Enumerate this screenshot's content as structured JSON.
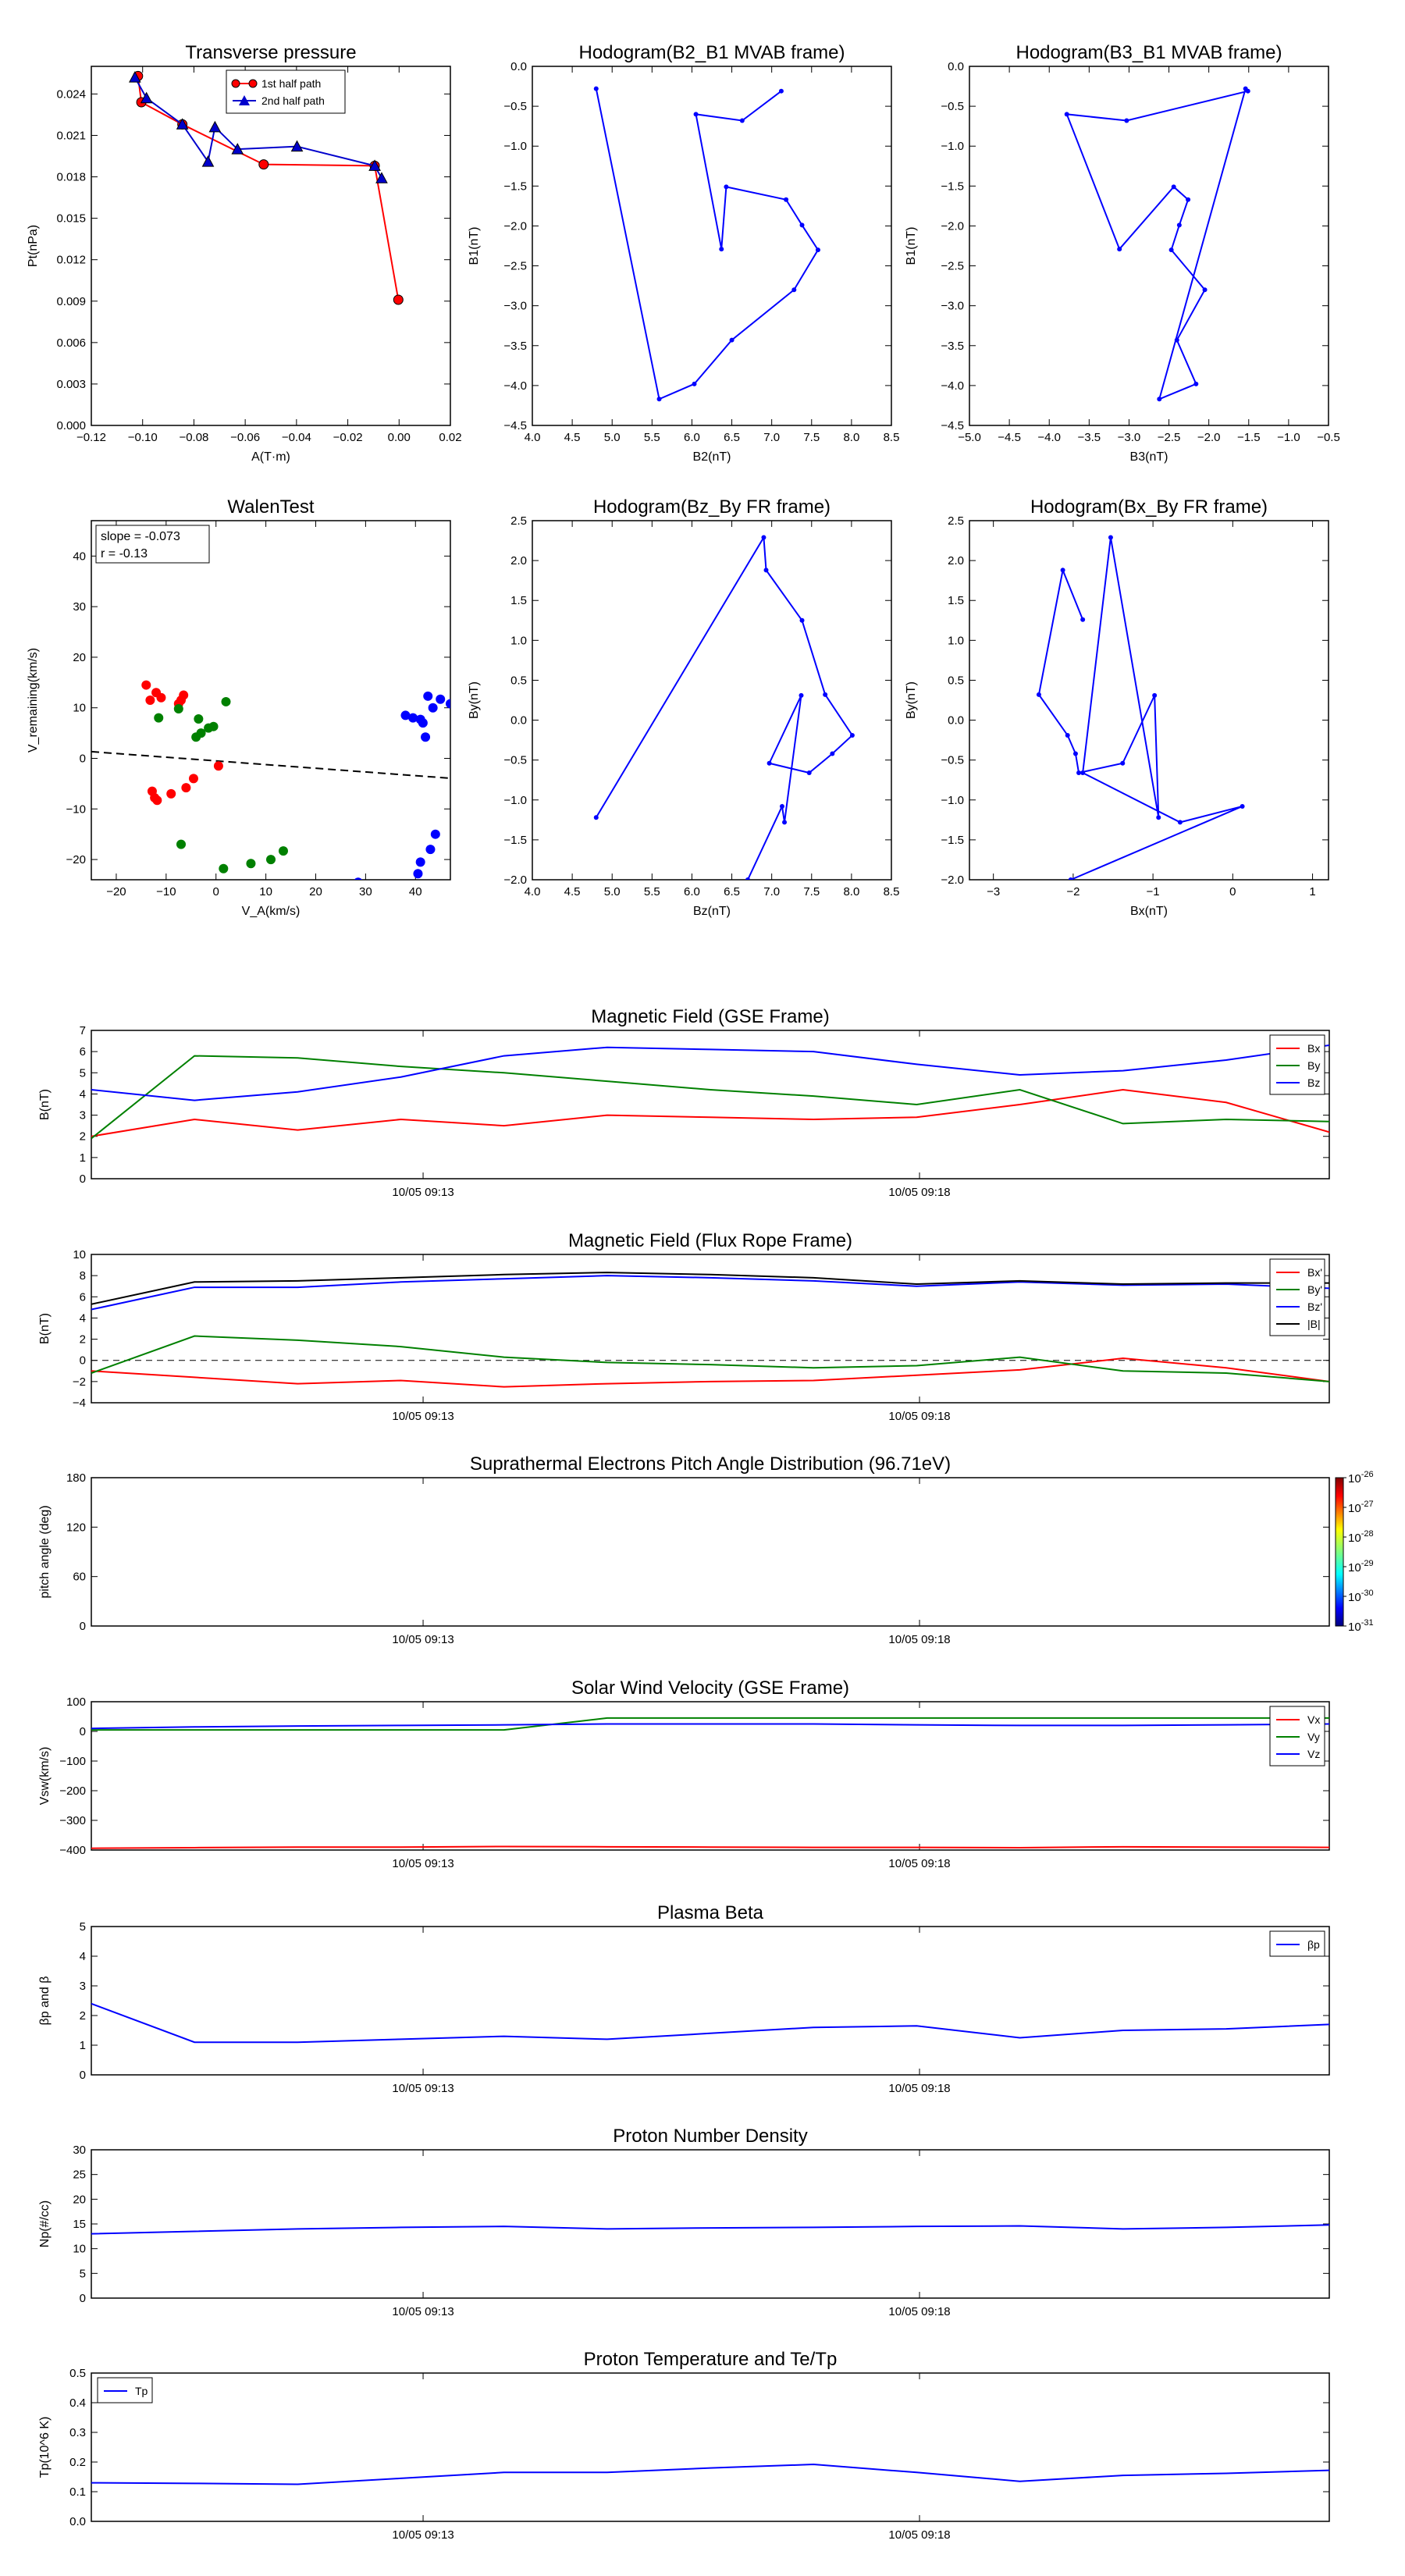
{
  "figure": {
    "time_ticks": [
      "10/05 09:13",
      "10/05 09:18"
    ]
  },
  "chart_data": [
    {
      "id": "tp",
      "type": "line",
      "title": "Transverse pressure",
      "xlabel": "A(T·m)",
      "ylabel": "Pt(nPa)",
      "xlim": [
        -0.12,
        0.02
      ],
      "ylim": [
        0,
        0.026
      ],
      "xticks": [
        -0.12,
        -0.1,
        -0.08,
        -0.06,
        -0.04,
        -0.02,
        0.0,
        0.02
      ],
      "xtick_labels": [
        "−0.12",
        "−0.10",
        "−0.08",
        "−0.06",
        "−0.04",
        "−0.02",
        "0.00",
        "0.02"
      ],
      "yticks": [
        0,
        0.003,
        0.006,
        0.009,
        0.012,
        0.015,
        0.018,
        0.021,
        0.024
      ],
      "ytick_labels": [
        "0.000",
        "0.003",
        "0.006",
        "0.009",
        "0.012",
        "0.015",
        "0.018",
        "0.021",
        "0.024"
      ],
      "legend": "top-center",
      "series": [
        {
          "name": "1st half path",
          "color": "#ff0000",
          "marker": "circle",
          "x": [
            -0.0003,
            -0.0095,
            -0.0528,
            -0.0845,
            -0.1005,
            -0.1018
          ],
          "y": [
            0.0091,
            0.0188,
            0.0189,
            0.0218,
            0.0234,
            0.0253
          ]
        },
        {
          "name": "2nd half path",
          "color": "#0000cc",
          "marker": "triangle",
          "x": [
            -0.103,
            -0.0985,
            -0.0845,
            -0.0745,
            -0.0718,
            -0.063,
            -0.0398,
            -0.0095,
            -0.0068
          ],
          "y": [
            0.0252,
            0.0237,
            0.0218,
            0.0191,
            0.0216,
            0.02,
            0.0202,
            0.0188,
            0.0179
          ]
        }
      ]
    },
    {
      "id": "h1",
      "type": "line",
      "title": "Hodogram(B2_B1 MVAB frame)",
      "xlabel": "B2(nT)",
      "ylabel": "B1(nT)",
      "xlim": [
        4.0,
        8.5
      ],
      "ylim": [
        -4.5,
        0.0
      ],
      "xticks": [
        4.0,
        4.5,
        5.0,
        5.5,
        6.0,
        6.5,
        7.0,
        7.5,
        8.0,
        8.5
      ],
      "xtick_labels": [
        "4.0",
        "4.5",
        "5.0",
        "5.5",
        "6.0",
        "6.5",
        "7.0",
        "7.5",
        "8.0",
        "8.5"
      ],
      "yticks": [
        -4.5,
        -4.0,
        -3.5,
        -3.0,
        -2.5,
        -2.0,
        -1.5,
        -1.0,
        -0.5,
        0.0
      ],
      "ytick_labels": [
        "−4.5",
        "−4.0",
        "−3.5",
        "−3.0",
        "−2.5",
        "−2.0",
        "−1.5",
        "−1.0",
        "−0.5",
        "0.0"
      ],
      "series": [
        {
          "color": "#0000ff",
          "x": [
            7.12,
            6.63,
            6.05,
            6.37,
            6.43,
            7.18,
            7.38,
            7.58,
            7.28,
            6.5,
            6.03,
            5.59,
            4.8
          ],
          "y": [
            -0.31,
            -0.68,
            -0.6,
            -2.29,
            -1.51,
            -1.67,
            -1.99,
            -2.3,
            -2.8,
            -3.43,
            -3.98,
            -4.17,
            -0.28
          ]
        }
      ]
    },
    {
      "id": "h2",
      "type": "line",
      "title": "Hodogram(B3_B1 MVAB frame)",
      "xlabel": "B3(nT)",
      "ylabel": "B1(nT)",
      "xlim": [
        -5.0,
        -0.5
      ],
      "ylim": [
        -4.5,
        0.0
      ],
      "xticks": [
        -5.0,
        -4.5,
        -4.0,
        -3.5,
        -3.0,
        -2.5,
        -2.0,
        -1.5,
        -1.0,
        -0.5
      ],
      "xtick_labels": [
        "−5.0",
        "−4.5",
        "−4.0",
        "−3.5",
        "−3.0",
        "−2.5",
        "−2.0",
        "−1.5",
        "−1.0",
        "−0.5"
      ],
      "yticks": [
        -4.5,
        -4.0,
        -3.5,
        -3.0,
        -2.5,
        -2.0,
        -1.5,
        -1.0,
        -0.5,
        0.0
      ],
      "ytick_labels": [
        "−4.5",
        "−4.0",
        "−3.5",
        "−3.0",
        "−2.5",
        "−2.0",
        "−1.5",
        "−1.0",
        "−0.5",
        "0.0"
      ],
      "series": [
        {
          "color": "#0000ff",
          "x": [
            -1.51,
            -3.03,
            -3.78,
            -3.12,
            -2.44,
            -2.26,
            -2.37,
            -2.47,
            -2.05,
            -2.4,
            -2.16,
            -2.62,
            -1.54
          ],
          "y": [
            -0.31,
            -0.68,
            -0.6,
            -2.29,
            -1.51,
            -1.67,
            -1.99,
            -2.3,
            -2.8,
            -3.43,
            -3.98,
            -4.17,
            -0.28
          ]
        }
      ]
    },
    {
      "id": "walen",
      "type": "scatter",
      "title": "WalenTest",
      "xlabel": "V_A(km/s)",
      "ylabel": "V_remaining(km/s)",
      "xlim": [
        -25,
        47
      ],
      "ylim": [
        -24,
        47
      ],
      "xticks": [
        -20,
        -10,
        0,
        10,
        20,
        30,
        40
      ],
      "xtick_labels": [
        "−20",
        "−10",
        "0",
        "10",
        "20",
        "30",
        "40"
      ],
      "yticks": [
        -20,
        -10,
        0,
        10,
        20,
        30,
        40
      ],
      "ytick_labels": [
        "−20",
        "−10",
        "0",
        "10",
        "20",
        "30",
        "40"
      ],
      "annotation": [
        "slope = -0.073",
        "r = -0.13"
      ],
      "fit": {
        "slope": -0.073,
        "intercept": -0.5,
        "style": "dashed"
      },
      "series": [
        {
          "color": "#ff0000",
          "x": [
            -14.0,
            -13.2,
            -12.0,
            -11.0,
            -7.5,
            -7.0,
            -6.5,
            -12.8,
            -12.3,
            -11.8,
            -9.0,
            -6.0,
            -4.5,
            0.5
          ],
          "y": [
            14.5,
            11.5,
            13.0,
            12.0,
            10.8,
            11.5,
            12.5,
            -6.5,
            -7.8,
            -8.3,
            -7.0,
            -5.8,
            -4.0,
            -1.5
          ]
        },
        {
          "color": "#008000",
          "x": [
            -11.5,
            -7.5,
            -3.5,
            -3.0,
            -1.5,
            -0.5,
            2.0,
            -4.0,
            -7.0,
            1.5,
            7.0,
            11.0,
            13.5
          ],
          "y": [
            8.0,
            9.8,
            7.8,
            5.0,
            6.0,
            6.3,
            11.2,
            4.2,
            -17.0,
            -21.8,
            -20.8,
            -20.0,
            -18.3
          ]
        },
        {
          "color": "#0000ff",
          "x": [
            38.0,
            39.5,
            41.0,
            41.5,
            42.0,
            42.5,
            43.5,
            45.0,
            47.0,
            41.0,
            40.5,
            43.0,
            44.0,
            28.5
          ],
          "y": [
            8.5,
            8.0,
            7.7,
            7.0,
            4.2,
            12.3,
            10.0,
            11.7,
            10.8,
            -20.5,
            -22.8,
            -18.0,
            -15.0,
            -24.5
          ]
        }
      ]
    },
    {
      "id": "h3",
      "type": "line",
      "title": "Hodogram(Bz_By FR frame)",
      "xlabel": "Bz(nT)",
      "ylabel": "By(nT)",
      "xlim": [
        4.0,
        8.5
      ],
      "ylim": [
        -2.0,
        2.5
      ],
      "xticks": [
        4.0,
        4.5,
        5.0,
        5.5,
        6.0,
        6.5,
        7.0,
        7.5,
        8.0,
        8.5
      ],
      "xtick_labels": [
        "4.0",
        "4.5",
        "5.0",
        "5.5",
        "6.0",
        "6.5",
        "7.0",
        "7.5",
        "8.0",
        "8.5"
      ],
      "yticks": [
        -2.0,
        -1.5,
        -1.0,
        -0.5,
        0.0,
        0.5,
        1.0,
        1.5,
        2.0,
        2.5
      ],
      "ytick_labels": [
        "−2.0",
        "−1.5",
        "−1.0",
        "−0.5",
        "0.0",
        "0.5",
        "1.0",
        "1.5",
        "2.0",
        "2.5"
      ],
      "series": [
        {
          "color": "#0000ff",
          "x": [
            4.8,
            6.9,
            6.93,
            7.38,
            7.67,
            8.01,
            7.76,
            7.47,
            6.97,
            7.37,
            7.16,
            7.13,
            6.7
          ],
          "y": [
            -1.22,
            2.29,
            1.88,
            1.25,
            0.32,
            -0.19,
            -0.42,
            -0.66,
            -0.54,
            0.31,
            -1.28,
            -1.08,
            -2.0
          ]
        }
      ]
    },
    {
      "id": "h4",
      "type": "line",
      "title": "Hodogram(Bx_By FR frame)",
      "xlabel": "Bx(nT)",
      "ylabel": "By(nT)",
      "xlim": [
        -3.3,
        1.2
      ],
      "ylim": [
        -2.0,
        2.5
      ],
      "xticks": [
        -3,
        -2,
        -1,
        0,
        1
      ],
      "xtick_labels": [
        "−3",
        "−2",
        "−1",
        "0",
        "1"
      ],
      "yticks": [
        -2.0,
        -1.5,
        -1.0,
        -0.5,
        0.0,
        0.5,
        1.0,
        1.5,
        2.0,
        2.5
      ],
      "ytick_labels": [
        "−2.0",
        "−1.5",
        "−1.0",
        "−0.5",
        "0.0",
        "0.5",
        "1.0",
        "1.5",
        "2.0",
        "2.5"
      ],
      "series": [
        {
          "color": "#0000ff",
          "x": [
            -1.88,
            -2.13,
            -2.43,
            -2.07,
            -1.97,
            -1.93,
            -1.38,
            -0.98,
            -0.93,
            -1.53,
            -1.88,
            -0.66,
            0.12,
            -2.03
          ],
          "y": [
            1.26,
            1.88,
            0.32,
            -0.19,
            -0.42,
            -0.66,
            -0.54,
            0.31,
            -1.22,
            2.29,
            -0.66,
            -1.28,
            -1.08,
            -2.0
          ]
        }
      ]
    },
    {
      "id": "mag_gse",
      "type": "line",
      "title": "Magnetic Field (GSE Frame)",
      "ylabel": "B(nT)",
      "ylim": [
        0,
        7
      ],
      "yticks": [
        0,
        1,
        2,
        3,
        4,
        5,
        6,
        7
      ],
      "ytick_labels": [
        "0",
        "1",
        "2",
        "3",
        "4",
        "5",
        "6",
        "7"
      ],
      "x": [
        0,
        1,
        2,
        3,
        4,
        5,
        6,
        7,
        8,
        9,
        10,
        11,
        12
      ],
      "series": [
        {
          "name": "Bx",
          "color": "#ff0000",
          "values": [
            2.0,
            2.8,
            2.3,
            2.8,
            2.5,
            3.0,
            2.9,
            2.8,
            2.9,
            3.5,
            4.2,
            3.6,
            2.2
          ]
        },
        {
          "name": "By",
          "color": "#008000",
          "values": [
            1.9,
            5.8,
            5.7,
            5.3,
            5.0,
            4.6,
            4.2,
            3.9,
            3.5,
            4.2,
            2.6,
            2.8,
            2.7
          ]
        },
        {
          "name": "Bz",
          "color": "#0000ff",
          "values": [
            4.2,
            3.7,
            4.1,
            4.8,
            5.8,
            6.2,
            6.1,
            6.0,
            5.4,
            4.9,
            5.1,
            5.6,
            6.3
          ]
        }
      ]
    },
    {
      "id": "mag_fr",
      "type": "line",
      "title": "Magnetic Field (Flux Rope Frame)",
      "ylabel": "B(nT)",
      "ylim": [
        -4,
        10
      ],
      "yticks": [
        -4,
        -2,
        0,
        2,
        4,
        6,
        8,
        10
      ],
      "ytick_labels": [
        "−4",
        "−2",
        "0",
        "2",
        "4",
        "6",
        "8",
        "10"
      ],
      "zero_line": true,
      "x": [
        0,
        1,
        2,
        3,
        4,
        5,
        6,
        7,
        8,
        9,
        10,
        11,
        12
      ],
      "series": [
        {
          "name": "Bx'",
          "color": "#ff0000",
          "values": [
            -1.0,
            -1.6,
            -2.2,
            -1.9,
            -2.5,
            -2.2,
            -2.0,
            -1.9,
            -1.4,
            -0.9,
            0.2,
            -0.7,
            -2.0
          ]
        },
        {
          "name": "By'",
          "color": "#008000",
          "values": [
            -1.2,
            2.3,
            1.9,
            1.3,
            0.3,
            -0.2,
            -0.4,
            -0.7,
            -0.5,
            0.3,
            -1.0,
            -1.2,
            -2.0
          ]
        },
        {
          "name": "Bz'",
          "color": "#0000ff",
          "values": [
            4.8,
            6.9,
            6.9,
            7.4,
            7.7,
            8.0,
            7.8,
            7.5,
            7.0,
            7.4,
            7.1,
            7.2,
            6.8
          ]
        },
        {
          "name": "|B|",
          "color": "#000000",
          "values": [
            5.3,
            7.4,
            7.5,
            7.8,
            8.1,
            8.3,
            8.1,
            7.8,
            7.2,
            7.5,
            7.2,
            7.3,
            7.3
          ]
        }
      ]
    },
    {
      "id": "pad",
      "type": "heatmap",
      "title": "Suprathermal Electrons Pitch Angle Distribution (96.71eV)",
      "ylabel": "pitch angle (deg)",
      "ylim": [
        0,
        180
      ],
      "yticks": [
        0,
        60,
        120,
        180
      ],
      "ytick_labels": [
        "0",
        "60",
        "120",
        "180"
      ],
      "colorbar": {
        "log_range": [
          -31,
          -26
        ],
        "labels": [
          "-26",
          "-27",
          "-28",
          "-29",
          "-30",
          "-31"
        ]
      }
    },
    {
      "id": "vsw",
      "type": "line",
      "title": "Solar Wind Velocity (GSE Frame)",
      "ylabel": "Vsw(km/s)",
      "ylim": [
        -400,
        100
      ],
      "yticks": [
        -400,
        -300,
        -200,
        -100,
        0,
        100
      ],
      "ytick_labels": [
        "−400",
        "−300",
        "−200",
        "−100",
        "0",
        "100"
      ],
      "x": [
        0,
        1,
        2,
        3,
        4,
        5,
        6,
        7,
        8,
        9,
        10,
        11,
        12
      ],
      "series": [
        {
          "name": "Vx",
          "color": "#ff0000",
          "values": [
            -394,
            -392,
            -390,
            -390,
            -388,
            -389,
            -390,
            -391,
            -391,
            -392,
            -389,
            -390,
            -391
          ]
        },
        {
          "name": "Vy",
          "color": "#008000",
          "values": [
            5,
            5,
            5,
            5,
            5,
            45,
            45,
            45,
            45,
            45,
            45,
            45,
            45
          ]
        },
        {
          "name": "Vz",
          "color": "#0000ff",
          "values": [
            10,
            15,
            18,
            20,
            22,
            25,
            25,
            25,
            22,
            20,
            20,
            22,
            25
          ]
        }
      ]
    },
    {
      "id": "beta",
      "type": "line",
      "title": "Plasma Beta",
      "ylabel": "βp and β",
      "ylim": [
        0,
        5
      ],
      "yticks": [
        0,
        1,
        2,
        3,
        4,
        5
      ],
      "ytick_labels": [
        "0",
        "1",
        "2",
        "3",
        "4",
        "5"
      ],
      "x": [
        0,
        1,
        2,
        3,
        4,
        5,
        6,
        7,
        8,
        9,
        10,
        11,
        12
      ],
      "series": [
        {
          "name": "βp",
          "color": "#0000ff",
          "values": [
            2.4,
            1.1,
            1.1,
            1.2,
            1.3,
            1.2,
            1.4,
            1.6,
            1.65,
            1.25,
            1.5,
            1.55,
            1.7
          ]
        }
      ]
    },
    {
      "id": "np",
      "type": "line",
      "title": "Proton Number Density",
      "ylabel": "Np(#/cc)",
      "ylim": [
        0,
        30
      ],
      "yticks": [
        0,
        5,
        10,
        15,
        20,
        25,
        30
      ],
      "ytick_labels": [
        "0",
        "5",
        "10",
        "15",
        "20",
        "25",
        "30"
      ],
      "x": [
        0,
        1,
        2,
        3,
        4,
        5,
        6,
        7,
        8,
        9,
        10,
        11,
        12
      ],
      "series": [
        {
          "color": "#0000ff",
          "values": [
            13.0,
            13.5,
            14.0,
            14.3,
            14.5,
            14.0,
            14.2,
            14.3,
            14.5,
            14.6,
            14.0,
            14.3,
            14.8
          ]
        }
      ]
    },
    {
      "id": "tp2",
      "type": "line",
      "title": "Proton Temperature and Te/Tp",
      "ylabel": "Tp(10^6 K)",
      "ylim": [
        0,
        0.5
      ],
      "yticks": [
        0,
        0.1,
        0.2,
        0.3,
        0.4,
        0.5
      ],
      "ytick_labels": [
        "0.0",
        "0.1",
        "0.2",
        "0.3",
        "0.4",
        "0.5"
      ],
      "x": [
        0,
        1,
        2,
        3,
        4,
        5,
        6,
        7,
        8,
        9,
        10,
        11,
        12
      ],
      "series": [
        {
          "name": "Tp",
          "color": "#0000ff",
          "values": [
            0.13,
            0.128,
            0.125,
            0.145,
            0.165,
            0.165,
            0.18,
            0.192,
            0.165,
            0.135,
            0.155,
            0.162,
            0.172
          ]
        }
      ]
    }
  ]
}
